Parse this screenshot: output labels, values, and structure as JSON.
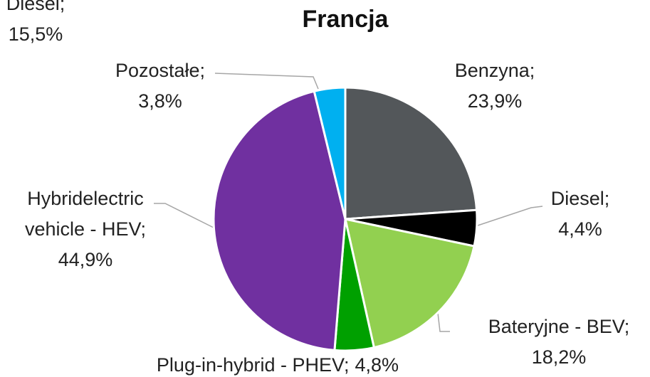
{
  "chart_data": {
    "type": "pie",
    "title": "Francja",
    "categories": [
      "Benzyna;",
      "Diesel;",
      "Bateryjne - BEV;",
      "Plug-in-hybrid - PHEV;",
      "Hybridelectric vehicle - HEV;",
      "Pozostałe;"
    ],
    "values": [
      23.9,
      4.4,
      18.2,
      4.8,
      44.9,
      3.8
    ],
    "value_labels": [
      "23,9%",
      "4,4%",
      "18,2%",
      "4,8%",
      "44,9%",
      "3,8%"
    ],
    "colors": [
      "#53575a",
      "#000000",
      "#92d050",
      "#00a000",
      "#7030a0",
      "#00b0f0"
    ],
    "annotations": [
      "Diesel;",
      "15,5%"
    ]
  }
}
